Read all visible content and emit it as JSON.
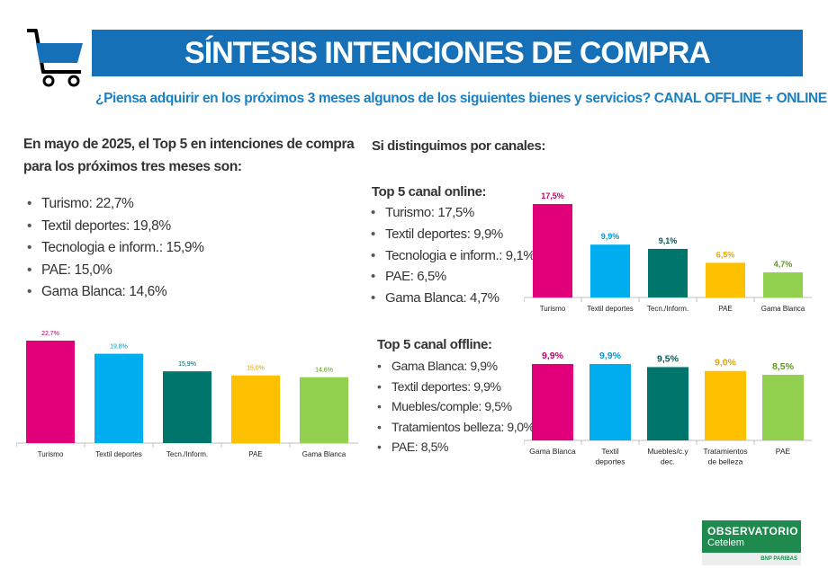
{
  "header": {
    "title": "SÍNTESIS INTENCIONES DE COMPRA",
    "question": "¿Piensa adquirir en los próximos 3 meses algunos de los siguientes bienes y servicios? CANAL OFFLINE + ONLINE",
    "icon": "shopping-cart-icon"
  },
  "intro": {
    "text": "En mayo de 2025, el Top 5 en intenciones de compra para los próximos tres meses son:",
    "items": [
      "Turismo: 22,7%",
      "Textil deportes: 19,8%",
      "Tecnologia e inform.: 15,9%",
      "PAE: 15,0%",
      "Gama Blanca: 14,6%"
    ]
  },
  "channels_heading": "Si distinguimos por canales:",
  "online": {
    "title": "Top 5 canal online:",
    "items": [
      "Turismo: 17,5%",
      "Textil deportes: 9,9%",
      "Tecnologia e inform.: 9,1%",
      "PAE: 6,5%",
      "Gama Blanca: 4,7%"
    ]
  },
  "offline": {
    "title": "Top 5 canal offline:",
    "items": [
      "Gama Blanca: 9,9%",
      "Textil deportes: 9,9%",
      "Muebles/comple: 9,5%",
      "Tratamientos belleza: 9,0%",
      "PAE: 8,5%"
    ]
  },
  "logo": {
    "name": "OBSERVATORIO",
    "sub": "Cetelem",
    "partner": "BNP PARIBAS"
  },
  "colors": {
    "banner": "#1670b8",
    "question": "#1a80c4",
    "logo": "#1f8a4d"
  },
  "chart_data": [
    {
      "id": "total",
      "type": "bar",
      "categories": [
        "Turismo",
        "Textil deportes",
        "Tecn./Inform.",
        "PAE",
        "Gama Blanca"
      ],
      "values": [
        22.7,
        19.8,
        15.9,
        15.0,
        14.6
      ],
      "labels": [
        "22,7%",
        "19,8%",
        "15,9%",
        "15,0%",
        "14,6%"
      ],
      "colors": [
        "#e2007a",
        "#00aeef",
        "#00756c",
        "#ffc000",
        "#92d050"
      ],
      "label_colors": [
        "#a8005b",
        "#0090c8",
        "#005a52",
        "#d99a00",
        "#5c9a1e"
      ]
    },
    {
      "id": "online",
      "type": "bar",
      "categories": [
        "Turismo",
        "Textil deportes",
        "Tecn./Inform.",
        "PAE",
        "Gama Blanca"
      ],
      "values": [
        17.5,
        9.9,
        9.1,
        6.5,
        4.7
      ],
      "labels": [
        "17,5%",
        "9,9%",
        "9,1%",
        "6,5%",
        "4,7%"
      ],
      "colors": [
        "#e2007a",
        "#00aeef",
        "#00756c",
        "#ffc000",
        "#92d050"
      ],
      "label_colors": [
        "#c3006a",
        "#0098d4",
        "#005a52",
        "#e0a800",
        "#5c9a1e"
      ]
    },
    {
      "id": "offline",
      "type": "bar",
      "categories": [
        "Gama Blanca",
        "Textil deportes",
        "Muebles/c.y dec.",
        "Tratamientos de belleza",
        "PAE"
      ],
      "values": [
        9.9,
        9.9,
        9.5,
        9.0,
        8.5
      ],
      "labels": [
        "9,9%",
        "9,9%",
        "9,5%",
        "9,0%",
        "8,5%"
      ],
      "colors": [
        "#e2007a",
        "#00aeef",
        "#00756c",
        "#ffc000",
        "#92d050"
      ],
      "label_colors": [
        "#c3006a",
        "#0098d4",
        "#005a52",
        "#e0a800",
        "#5c9a1e"
      ]
    }
  ]
}
